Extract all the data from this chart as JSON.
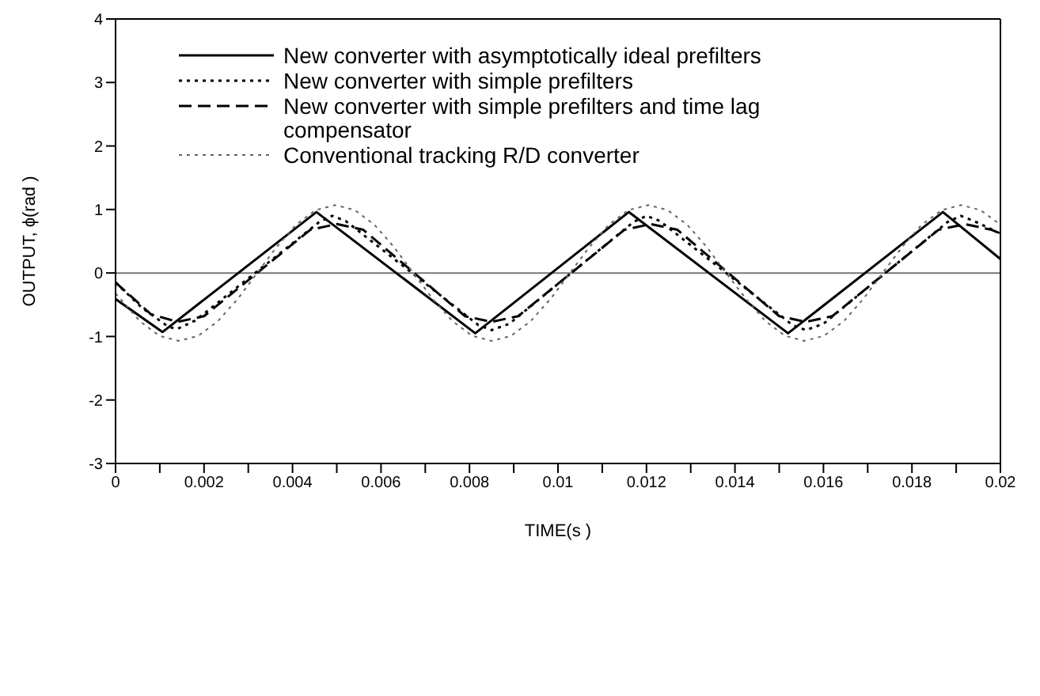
{
  "chart_data": {
    "type": "line",
    "xlabel": "TIME(s )",
    "ylabel": "OUTPUT, ϕ(rad )",
    "xlim": [
      0,
      0.02
    ],
    "xticks": [
      0,
      {
        "value": 0.001,
        "label": null
      },
      0.002,
      {
        "value": 0.003,
        "label": null
      },
      0.004,
      {
        "value": 0.005,
        "label": null
      },
      0.006,
      {
        "value": 0.007,
        "label": null
      },
      0.008,
      {
        "value": 0.009,
        "label": null
      },
      0.01,
      {
        "value": 0.011,
        "label": null
      },
      0.012,
      {
        "value": 0.013,
        "label": null
      },
      0.014,
      {
        "value": 0.015,
        "label": null
      },
      0.016,
      {
        "value": 0.017,
        "label": null
      },
      0.018,
      {
        "value": 0.019,
        "label": null
      },
      0.02
    ],
    "ylim": [
      -3,
      4
    ],
    "yticks": [
      -3,
      -2,
      -1,
      0,
      1,
      2,
      3,
      4
    ],
    "grid": false,
    "legend": "top left",
    "marker": "none",
    "ref_lines": [
      {
        "axis": "y",
        "value": 0,
        "color": "#777777"
      }
    ],
    "series": [
      {
        "name": "New converter with asymptotically ideal prefilters",
        "color": "#000000",
        "line_style": "solid",
        "x": [
          0,
          0.00106,
          0.00454,
          0.00813,
          0.0116,
          0.0152,
          0.0187,
          0.02
        ],
        "values": [
          -0.41,
          -0.93,
          0.96,
          -0.95,
          0.96,
          -0.95,
          0.96,
          0.22
        ]
      },
      {
        "name": "New converter with simple prefilters",
        "color": "#000000",
        "line_style": "dotted",
        "x": [
          0,
          0.0006,
          0.0012,
          0.0014,
          0.0018,
          0.0046,
          0.0049,
          0.0052,
          0.0082,
          0.0085,
          0.0089,
          0.0117,
          0.012,
          0.0123,
          0.0153,
          0.0156,
          0.016,
          0.0188,
          0.0191,
          0.0194,
          0.02
        ],
        "values": [
          -0.15,
          -0.55,
          -0.85,
          -0.88,
          -0.75,
          0.8,
          0.9,
          0.82,
          -0.82,
          -0.9,
          -0.8,
          0.8,
          0.9,
          0.82,
          -0.82,
          -0.9,
          -0.8,
          0.8,
          0.9,
          0.82,
          0.62
        ]
      },
      {
        "name": "New converter with simple prefilters and time lag compensator",
        "color": "#000000",
        "line_style": "dashed",
        "x": [
          0,
          0.0008,
          0.0014,
          0.002,
          0.0044,
          0.005,
          0.0056,
          0.0079,
          0.0085,
          0.0091,
          0.0115,
          0.0121,
          0.0127,
          0.015,
          0.0156,
          0.0162,
          0.0186,
          0.0192,
          0.0198,
          0.02
        ],
        "values": [
          -0.15,
          -0.65,
          -0.77,
          -0.68,
          0.68,
          0.77,
          0.68,
          -0.68,
          -0.77,
          -0.68,
          0.68,
          0.77,
          0.68,
          -0.68,
          -0.77,
          -0.68,
          0.68,
          0.77,
          0.68,
          0.62
        ]
      },
      {
        "name": "Conventional tracking R/D converter",
        "color": "#666666",
        "line_style": "dotted",
        "x": [
          0,
          0.00055,
          0.00099,
          0.00143,
          0.00187,
          0.00231,
          0.00276,
          0.0032,
          0.00364,
          0.00408,
          0.00452,
          0.00497,
          0.00541,
          0.00585,
          0.00629,
          0.00673,
          0.00717,
          0.00762,
          0.00806,
          0.0085,
          0.00894,
          0.00938,
          0.00983,
          0.01027,
          0.01071,
          0.01115,
          0.01159,
          0.01204,
          0.01248,
          0.01292,
          0.01336,
          0.0138,
          0.01425,
          0.01469,
          0.01513,
          0.01557,
          0.01601,
          0.01646,
          0.0169,
          0.01734,
          0.01778,
          0.01822,
          0.01867,
          0.01911,
          0.01955,
          0.02
        ],
        "values": [
          -0.32,
          -0.76,
          -0.99,
          -1.07,
          -0.99,
          -0.76,
          -0.41,
          0,
          0.41,
          0.76,
          0.99,
          1.07,
          0.99,
          0.76,
          0.41,
          0,
          -0.41,
          -0.76,
          -0.99,
          -1.07,
          -0.99,
          -0.76,
          -0.41,
          0,
          0.41,
          0.76,
          0.99,
          1.07,
          0.99,
          0.76,
          0.41,
          0,
          -0.41,
          -0.76,
          -0.99,
          -1.07,
          -0.99,
          -0.76,
          -0.41,
          0,
          0.41,
          0.76,
          0.99,
          1.07,
          0.99,
          0.76
        ]
      }
    ]
  }
}
